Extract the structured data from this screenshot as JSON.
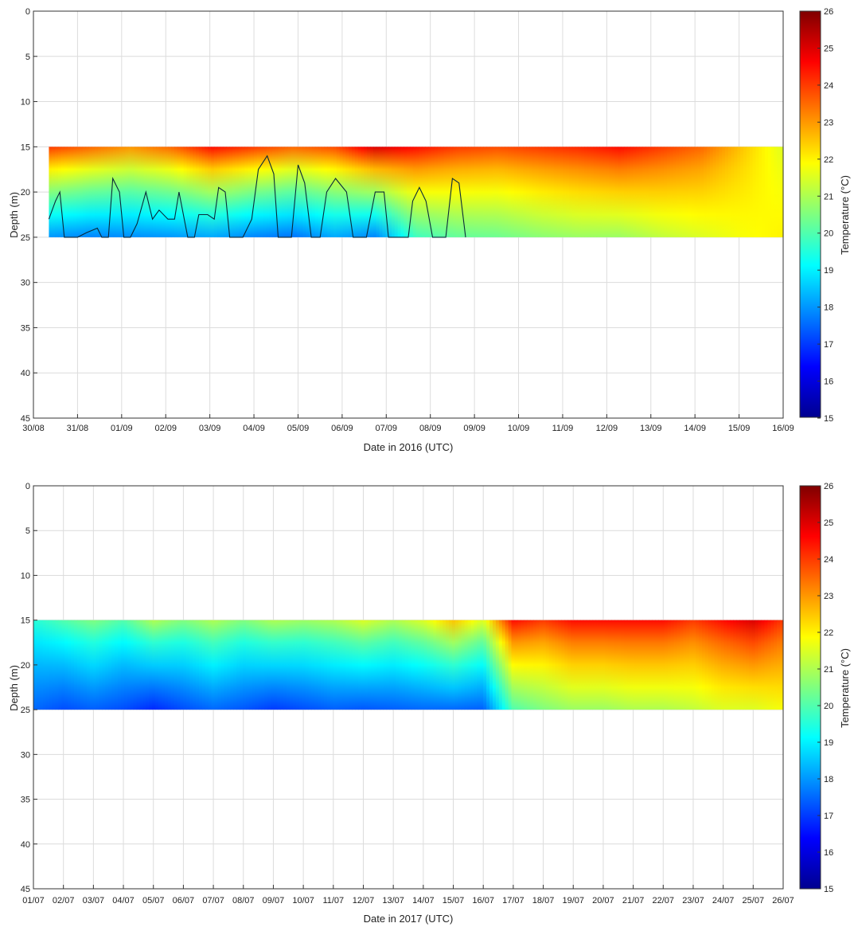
{
  "chart_data": [
    {
      "type": "heatmap",
      "xlabel": "Date in 2016 (UTC)",
      "ylabel": "Depth (m)",
      "x_tick_labels": [
        "30/08",
        "31/08",
        "01/09",
        "02/09",
        "03/09",
        "04/09",
        "05/09",
        "06/09",
        "07/09",
        "08/09",
        "09/09",
        "10/09",
        "11/09",
        "12/09",
        "13/09",
        "14/09",
        "15/09",
        "16/09"
      ],
      "y_ticks": [
        0,
        5,
        10,
        15,
        20,
        25,
        30,
        35,
        40,
        45
      ],
      "ylim": [
        45,
        0
      ],
      "y_inverted": true,
      "data_depth_range": [
        15,
        25
      ],
      "data_time_range_days": [
        0.35,
        17.0
      ],
      "grid": true,
      "colorbar": {
        "label": "Temperature (°C)",
        "ticks": [
          15,
          16,
          17,
          18,
          19,
          20,
          21,
          22,
          23,
          24,
          25,
          26
        ],
        "range": [
          15,
          26
        ],
        "colormap": "jet"
      },
      "contour_level_c": 19,
      "surface_temp_c": [
        24,
        23.5,
        23,
        23.5,
        24.5,
        24,
        23.5,
        23.8,
        25,
        24.5,
        24,
        23.8,
        24,
        24.2,
        24.5,
        24,
        23.5,
        22.5,
        21.5
      ],
      "bottom_temp_c": [
        18,
        17.8,
        17.9,
        18,
        18.2,
        17.8,
        17.6,
        18.2,
        17.8,
        19.8,
        20.2,
        20.3,
        20.6,
        20.8,
        20.8,
        21.2,
        21.5,
        21.8,
        22
      ],
      "tc_top_depth_m": [
        [
          0.35,
          23
        ],
        [
          0.5,
          21
        ],
        [
          0.6,
          20
        ],
        [
          0.7,
          25
        ],
        [
          1.0,
          25
        ],
        [
          1.2,
          24.5
        ],
        [
          1.45,
          24
        ],
        [
          1.55,
          25
        ],
        [
          1.7,
          25
        ],
        [
          1.8,
          18.5
        ],
        [
          1.95,
          20
        ],
        [
          2.05,
          25
        ],
        [
          2.2,
          25
        ],
        [
          2.35,
          23.5
        ],
        [
          2.55,
          20
        ],
        [
          2.7,
          23
        ],
        [
          2.85,
          22
        ],
        [
          3.05,
          23
        ],
        [
          3.2,
          23
        ],
        [
          3.3,
          20
        ],
        [
          3.5,
          25
        ],
        [
          3.65,
          25
        ],
        [
          3.75,
          22.5
        ],
        [
          3.95,
          22.5
        ],
        [
          4.1,
          23
        ],
        [
          4.2,
          19.5
        ],
        [
          4.35,
          20
        ],
        [
          4.45,
          25
        ],
        [
          4.75,
          25
        ],
        [
          4.95,
          23
        ],
        [
          5.1,
          17.5
        ],
        [
          5.3,
          16
        ],
        [
          5.45,
          18
        ],
        [
          5.55,
          25
        ],
        [
          5.85,
          25
        ],
        [
          6.0,
          17
        ],
        [
          6.15,
          19
        ],
        [
          6.3,
          25
        ],
        [
          6.5,
          25
        ],
        [
          6.65,
          20
        ],
        [
          6.85,
          18.5
        ],
        [
          7.1,
          20
        ],
        [
          7.25,
          25
        ],
        [
          7.55,
          25
        ],
        [
          7.75,
          20
        ],
        [
          7.95,
          20
        ],
        [
          8.05,
          25
        ],
        [
          8.5,
          25
        ],
        [
          8.6,
          21
        ],
        [
          8.75,
          19.5
        ],
        [
          8.9,
          21
        ],
        [
          9.05,
          25
        ],
        [
          9.35,
          25
        ],
        [
          9.5,
          18.5
        ],
        [
          9.65,
          19
        ],
        [
          9.8,
          25
        ]
      ]
    },
    {
      "type": "heatmap",
      "xlabel": "Date in 2017 (UTC)",
      "ylabel": "Depth (m)",
      "x_tick_labels": [
        "01/07",
        "02/07",
        "03/07",
        "04/07",
        "05/07",
        "06/07",
        "07/07",
        "08/07",
        "09/07",
        "10/07",
        "11/07",
        "12/07",
        "13/07",
        "14/07",
        "15/07",
        "16/07",
        "17/07",
        "18/07",
        "19/07",
        "20/07",
        "21/07",
        "22/07",
        "23/07",
        "24/07",
        "25/07",
        "26/07"
      ],
      "y_ticks": [
        0,
        5,
        10,
        15,
        20,
        25,
        30,
        35,
        40,
        45
      ],
      "ylim": [
        45,
        0
      ],
      "y_inverted": true,
      "data_depth_range": [
        15,
        25
      ],
      "data_time_range_days": [
        0.0,
        25.0
      ],
      "grid": true,
      "colorbar": {
        "label": "Temperature (°C)",
        "ticks": [
          15,
          16,
          17,
          18,
          19,
          20,
          21,
          22,
          23,
          24,
          25,
          26
        ],
        "range": [
          15,
          26
        ],
        "colormap": "jet"
      },
      "contour_level_c": 19,
      "surface_temp_c": [
        19.5,
        20,
        20.5,
        20,
        21,
        20.5,
        21,
        20.5,
        21,
        20.8,
        21,
        21.5,
        21,
        21.5,
        22.5,
        21.5,
        24.5,
        24,
        24.5,
        24.5,
        24.5,
        24.5,
        24,
        24.5,
        25,
        24
      ],
      "bottom_temp_c": [
        17.5,
        17.2,
        17.4,
        17.2,
        16.8,
        17.2,
        17.5,
        17.3,
        17,
        17.2,
        17.4,
        17.3,
        17.4,
        17.5,
        17.5,
        17.4,
        20,
        20.5,
        20.8,
        20.8,
        21,
        21,
        21.2,
        21.5,
        21.5,
        21.8
      ]
    }
  ]
}
